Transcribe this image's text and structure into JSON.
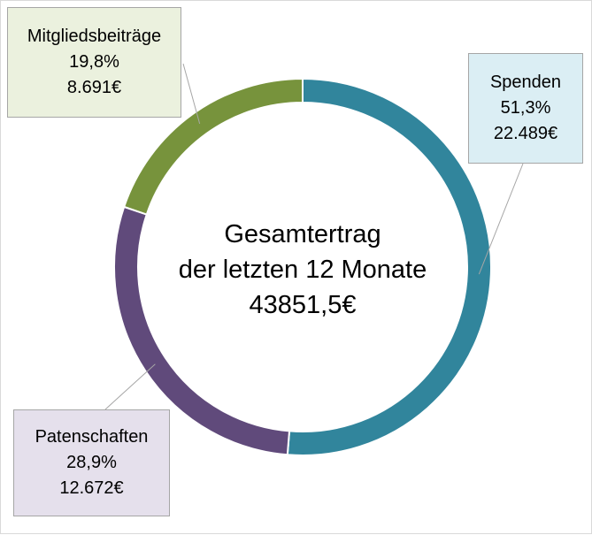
{
  "chart_data": {
    "type": "pie",
    "style": "donut",
    "center_label": [
      "Gesamtertrag",
      "der letzten 12 Monate",
      "43851,5€"
    ],
    "slices": [
      {
        "label": "Spenden",
        "percent": "51,3%",
        "amount": "22.489€",
        "value": 22489,
        "color": "#31859c",
        "callout_bg": "#dbeef4"
      },
      {
        "label": "Patenschaften",
        "percent": "28,9%",
        "amount": "12.672€",
        "value": 12672,
        "color": "#604a7b",
        "callout_bg": "#e5e0ec"
      },
      {
        "label": "Mitgliedsbeiträge",
        "percent": "19,8%",
        "amount": "8.691€",
        "value": 8691,
        "color": "#77933c",
        "callout_bg": "#ebf1de"
      }
    ],
    "callout_border_color": "#a6a6a6",
    "leader_line_color": "#a6a6a6"
  }
}
